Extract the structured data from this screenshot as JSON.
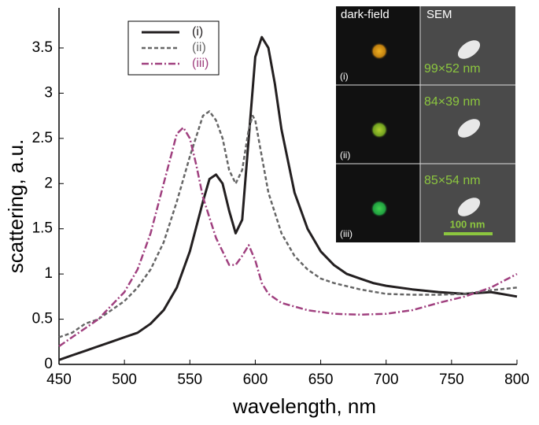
{
  "chart_data": {
    "type": "line",
    "xlabel": "wavelength, nm",
    "ylabel": "scattering, a.u.",
    "xlim": [
      450,
      800
    ],
    "xticks": [
      450,
      500,
      550,
      600,
      650,
      700,
      750,
      800
    ],
    "ylim": [
      0,
      3.9
    ],
    "yticks": [
      0,
      0.5,
      1,
      1.5,
      2,
      2.5,
      3,
      3.5
    ],
    "grid": false,
    "legend": "top-left",
    "series": [
      {
        "name": "(i)",
        "color": "#231f20",
        "dash": "solid",
        "x": [
          450,
          460,
          470,
          480,
          490,
          500,
          510,
          520,
          530,
          540,
          550,
          560,
          565,
          570,
          575,
          580,
          585,
          590,
          595,
          600,
          605,
          610,
          615,
          620,
          630,
          640,
          650,
          660,
          670,
          680,
          690,
          700,
          720,
          740,
          760,
          780,
          800
        ],
        "values": [
          0.05,
          0.1,
          0.15,
          0.2,
          0.25,
          0.3,
          0.35,
          0.45,
          0.6,
          0.85,
          1.25,
          1.8,
          2.05,
          2.1,
          2.0,
          1.7,
          1.45,
          1.6,
          2.5,
          3.4,
          3.62,
          3.5,
          3.1,
          2.6,
          1.9,
          1.5,
          1.25,
          1.1,
          1.0,
          0.95,
          0.9,
          0.87,
          0.83,
          0.8,
          0.78,
          0.8,
          0.75
        ]
      },
      {
        "name": "(ii)",
        "color": "#666666",
        "dash": "dashed",
        "x": [
          450,
          460,
          470,
          480,
          490,
          500,
          510,
          520,
          530,
          540,
          550,
          560,
          565,
          570,
          575,
          580,
          585,
          590,
          595,
          598,
          600,
          605,
          610,
          620,
          630,
          640,
          650,
          660,
          680,
          700,
          720,
          740,
          760,
          780,
          800
        ],
        "values": [
          0.3,
          0.35,
          0.45,
          0.5,
          0.6,
          0.7,
          0.85,
          1.05,
          1.35,
          1.8,
          2.3,
          2.75,
          2.8,
          2.7,
          2.5,
          2.15,
          2.0,
          2.15,
          2.6,
          2.75,
          2.7,
          2.3,
          1.9,
          1.45,
          1.2,
          1.05,
          0.95,
          0.9,
          0.83,
          0.78,
          0.77,
          0.77,
          0.78,
          0.82,
          0.85
        ]
      },
      {
        "name": "(iii)",
        "color": "#a0407f",
        "dash": "dashdot",
        "x": [
          450,
          460,
          470,
          480,
          490,
          500,
          510,
          520,
          530,
          540,
          545,
          550,
          555,
          560,
          570,
          580,
          585,
          590,
          595,
          600,
          605,
          610,
          620,
          640,
          660,
          680,
          700,
          720,
          740,
          760,
          780,
          800
        ],
        "values": [
          0.2,
          0.3,
          0.4,
          0.5,
          0.65,
          0.8,
          1.05,
          1.45,
          2.0,
          2.55,
          2.62,
          2.5,
          2.2,
          1.85,
          1.4,
          1.1,
          1.1,
          1.2,
          1.32,
          1.15,
          0.9,
          0.78,
          0.68,
          0.6,
          0.56,
          0.55,
          0.56,
          0.6,
          0.68,
          0.75,
          0.85,
          1.0
        ]
      }
    ],
    "inset": {
      "headers": [
        "dark-field",
        "SEM"
      ],
      "rows": [
        {
          "label": "(i)",
          "size": "99×52 nm"
        },
        {
          "label": "(ii)",
          "size": "84×39 nm"
        },
        {
          "label": "(iii)",
          "size": "85×54 nm"
        }
      ],
      "scale_bar": "100 nm"
    }
  }
}
